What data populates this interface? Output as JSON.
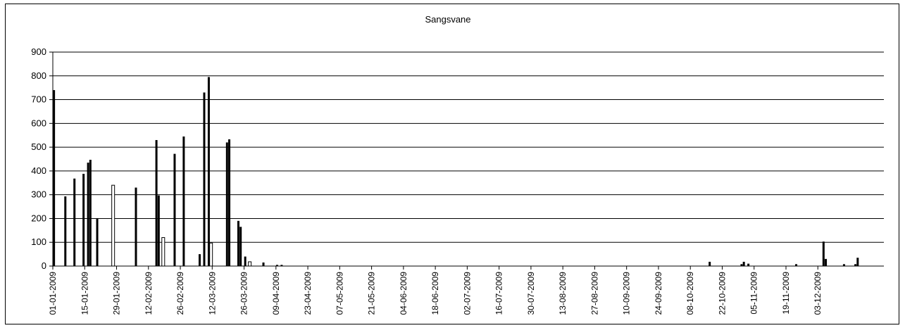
{
  "chart_data": {
    "type": "bar",
    "title": "Sangsvane",
    "xlabel": "",
    "ylabel": "",
    "x_range": [
      "01-01-2009",
      "31-12-2009"
    ],
    "ylim": [
      0,
      900
    ],
    "y_ticks": [
      0,
      100,
      200,
      300,
      400,
      500,
      600,
      700,
      800,
      900
    ],
    "x_tick_labels": [
      "01-01-2009",
      "15-01-2009",
      "29-01-2009",
      "12-02-2009",
      "26-02-2009",
      "12-03-2009",
      "26-03-2009",
      "09-04-2009",
      "23-04-2009",
      "07-05-2009",
      "21-05-2009",
      "04-06-2009",
      "18-06-2009",
      "02-07-2009",
      "16-07-2009",
      "30-07-2009",
      "13-08-2009",
      "27-08-2009",
      "10-09-2009",
      "24-09-2009",
      "08-10-2009",
      "22-10-2009",
      "05-11-2009",
      "19-11-2009",
      "03-12-2009"
    ],
    "grid": true,
    "legend": "none",
    "colors": {
      "filled_bar": "#000000",
      "hollow_bar": "#ffffff",
      "grid": "#000000"
    },
    "series": [
      {
        "style": "filled",
        "points": [
          {
            "x": "01-01-2009",
            "y": 740
          },
          {
            "x": "06-01-2009",
            "y": 293
          },
          {
            "x": "10-01-2009",
            "y": 368
          },
          {
            "x": "14-01-2009",
            "y": 388
          },
          {
            "x": "16-01-2009",
            "y": 435
          },
          {
            "x": "17-01-2009",
            "y": 447
          },
          {
            "x": "20-01-2009",
            "y": 200
          },
          {
            "x": "06-02-2009",
            "y": 330
          },
          {
            "x": "15-02-2009",
            "y": 530
          },
          {
            "x": "16-02-2009",
            "y": 297
          },
          {
            "x": "23-02-2009",
            "y": 472
          },
          {
            "x": "27-02-2009",
            "y": 545
          },
          {
            "x": "06-03-2009",
            "y": 50
          },
          {
            "x": "08-03-2009",
            "y": 730
          },
          {
            "x": "10-03-2009",
            "y": 795
          },
          {
            "x": "18-03-2009",
            "y": 520
          },
          {
            "x": "19-03-2009",
            "y": 533
          },
          {
            "x": "23-03-2009",
            "y": 190
          },
          {
            "x": "24-03-2009",
            "y": 165
          },
          {
            "x": "26-03-2009",
            "y": 40
          },
          {
            "x": "03-04-2009",
            "y": 15
          },
          {
            "x": "09-04-2009",
            "y": 5
          },
          {
            "x": "11-04-2009",
            "y": 5
          },
          {
            "x": "16-10-2009",
            "y": 18
          },
          {
            "x": "30-10-2009",
            "y": 8
          },
          {
            "x": "31-10-2009",
            "y": 18
          },
          {
            "x": "02-11-2009",
            "y": 10
          },
          {
            "x": "23-11-2009",
            "y": 8
          },
          {
            "x": "05-12-2009",
            "y": 103
          },
          {
            "x": "06-12-2009",
            "y": 30
          },
          {
            "x": "14-12-2009",
            "y": 8
          },
          {
            "x": "19-12-2009",
            "y": 8
          },
          {
            "x": "20-12-2009",
            "y": 35
          }
        ]
      },
      {
        "style": "hollow",
        "points": [
          {
            "x": "27-01-2009",
            "y": 340
          },
          {
            "x": "18-02-2009",
            "y": 120
          },
          {
            "x": "11-03-2009",
            "y": 97
          },
          {
            "x": "28-03-2009",
            "y": 18
          }
        ]
      }
    ]
  }
}
